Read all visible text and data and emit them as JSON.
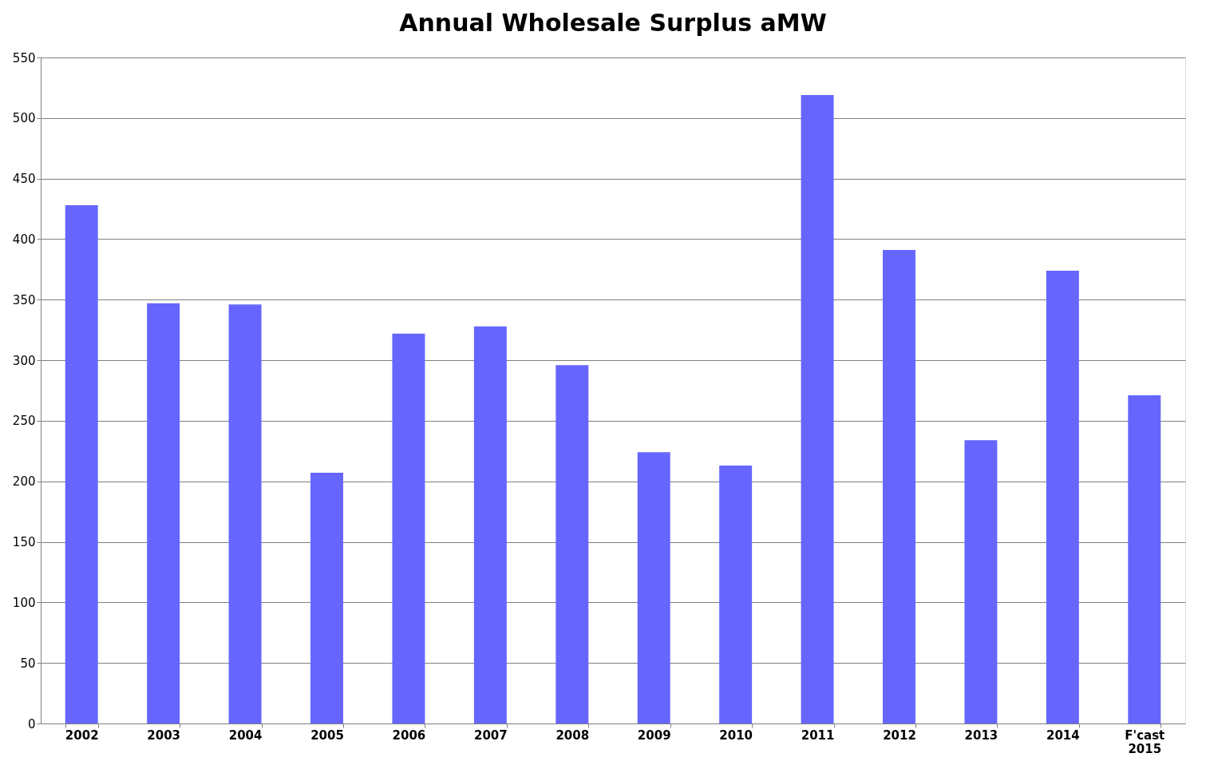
{
  "chart_data": {
    "type": "bar",
    "title": "Annual Wholesale Surplus aMW",
    "categories": [
      "2002",
      "2003",
      "2004",
      "2005",
      "2006",
      "2007",
      "2008",
      "2009",
      "2010",
      "2011",
      "2012",
      "2013",
      "2014",
      "F'cast 2015"
    ],
    "values": [
      428,
      347,
      346,
      207,
      322,
      328,
      296,
      224,
      213,
      519,
      391,
      234,
      374,
      271
    ],
    "color": "#6666ff",
    "ylim": [
      0,
      550
    ],
    "yticks": [
      0,
      50,
      100,
      150,
      200,
      250,
      300,
      350,
      400,
      450,
      500,
      550
    ],
    "grid": "y"
  }
}
